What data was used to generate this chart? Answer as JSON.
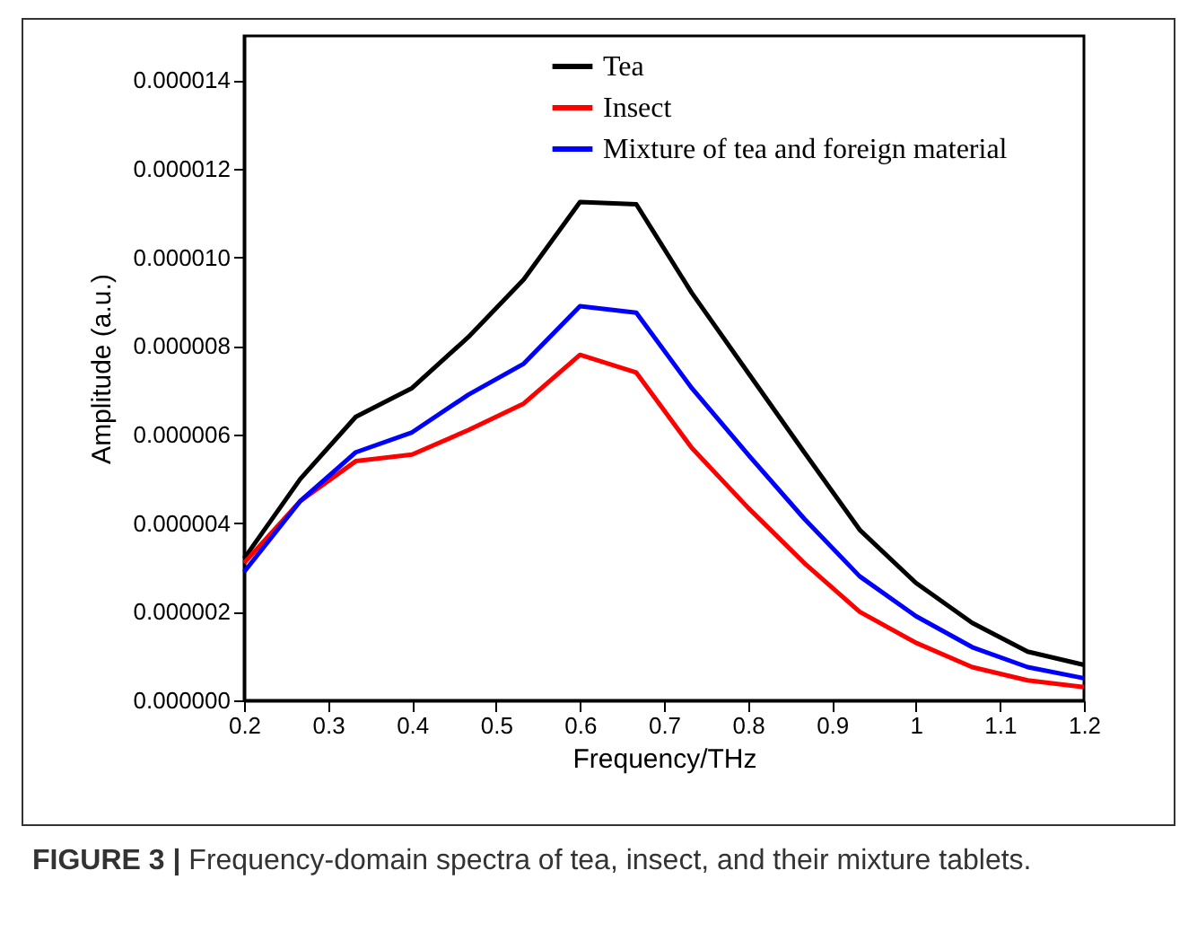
{
  "chart_data": {
    "type": "line",
    "xlabel": "Frequency/THz",
    "ylabel": "Amplitude (a.u.)",
    "x": [
      0.2,
      0.267,
      0.333,
      0.4,
      0.467,
      0.533,
      0.6,
      0.667,
      0.733,
      0.8,
      0.867,
      0.933,
      1.0,
      1.067,
      1.133,
      1.2
    ],
    "series": [
      {
        "name": "Tea",
        "color": "#000000",
        "values": [
          3.2e-06,
          5e-06,
          6.4e-06,
          7.05e-06,
          8.2e-06,
          9.5e-06,
          1.125e-05,
          1.12e-05,
          9.2e-06,
          7.4e-06,
          5.6e-06,
          3.85e-06,
          2.65e-06,
          1.75e-06,
          1.1e-06,
          8e-07
        ]
      },
      {
        "name": "Insect",
        "color": "#ff0000",
        "values": [
          3.1e-06,
          4.5e-06,
          5.4e-06,
          5.55e-06,
          6.1e-06,
          6.7e-06,
          7.8e-06,
          7.4e-06,
          5.7e-06,
          4.35e-06,
          3.1e-06,
          2e-06,
          1.3e-06,
          7.5e-07,
          4.5e-07,
          3e-07
        ]
      },
      {
        "name": "Mixture of tea and foreign material",
        "color": "#0000ff",
        "values": [
          2.9e-06,
          4.5e-06,
          5.6e-06,
          6.05e-06,
          6.9e-06,
          7.6e-06,
          8.9e-06,
          8.75e-06,
          7.05e-06,
          5.55e-06,
          4.1e-06,
          2.8e-06,
          1.9e-06,
          1.2e-06,
          7.5e-07,
          5e-07
        ]
      }
    ],
    "xlim": [
      0.2,
      1.2
    ],
    "xticks": [
      0.2,
      0.3,
      0.4,
      0.5,
      0.6,
      0.7,
      0.8,
      0.9,
      1.0,
      1.1,
      1.2
    ],
    "ylim": [
      0,
      1.5e-05
    ],
    "yticks": [
      {
        "value": 0,
        "label": "0.000000"
      },
      {
        "value": 2e-06,
        "label": "0.000002"
      },
      {
        "value": 4e-06,
        "label": "0.000004"
      },
      {
        "value": 6e-06,
        "label": "0.000006"
      },
      {
        "value": 8e-06,
        "label": "0.000008"
      },
      {
        "value": 1e-05,
        "label": "0.000010"
      },
      {
        "value": 1.2e-05,
        "label": "0.000012"
      },
      {
        "value": 1.4e-05,
        "label": "0.000014"
      }
    ],
    "grid": false,
    "legend": "top",
    "line_style": "solid",
    "marker": "none",
    "annotations": [
      "FIGURE 3 | Frequency-domain spectra of tea, insect, and their mixture tablets."
    ]
  }
}
